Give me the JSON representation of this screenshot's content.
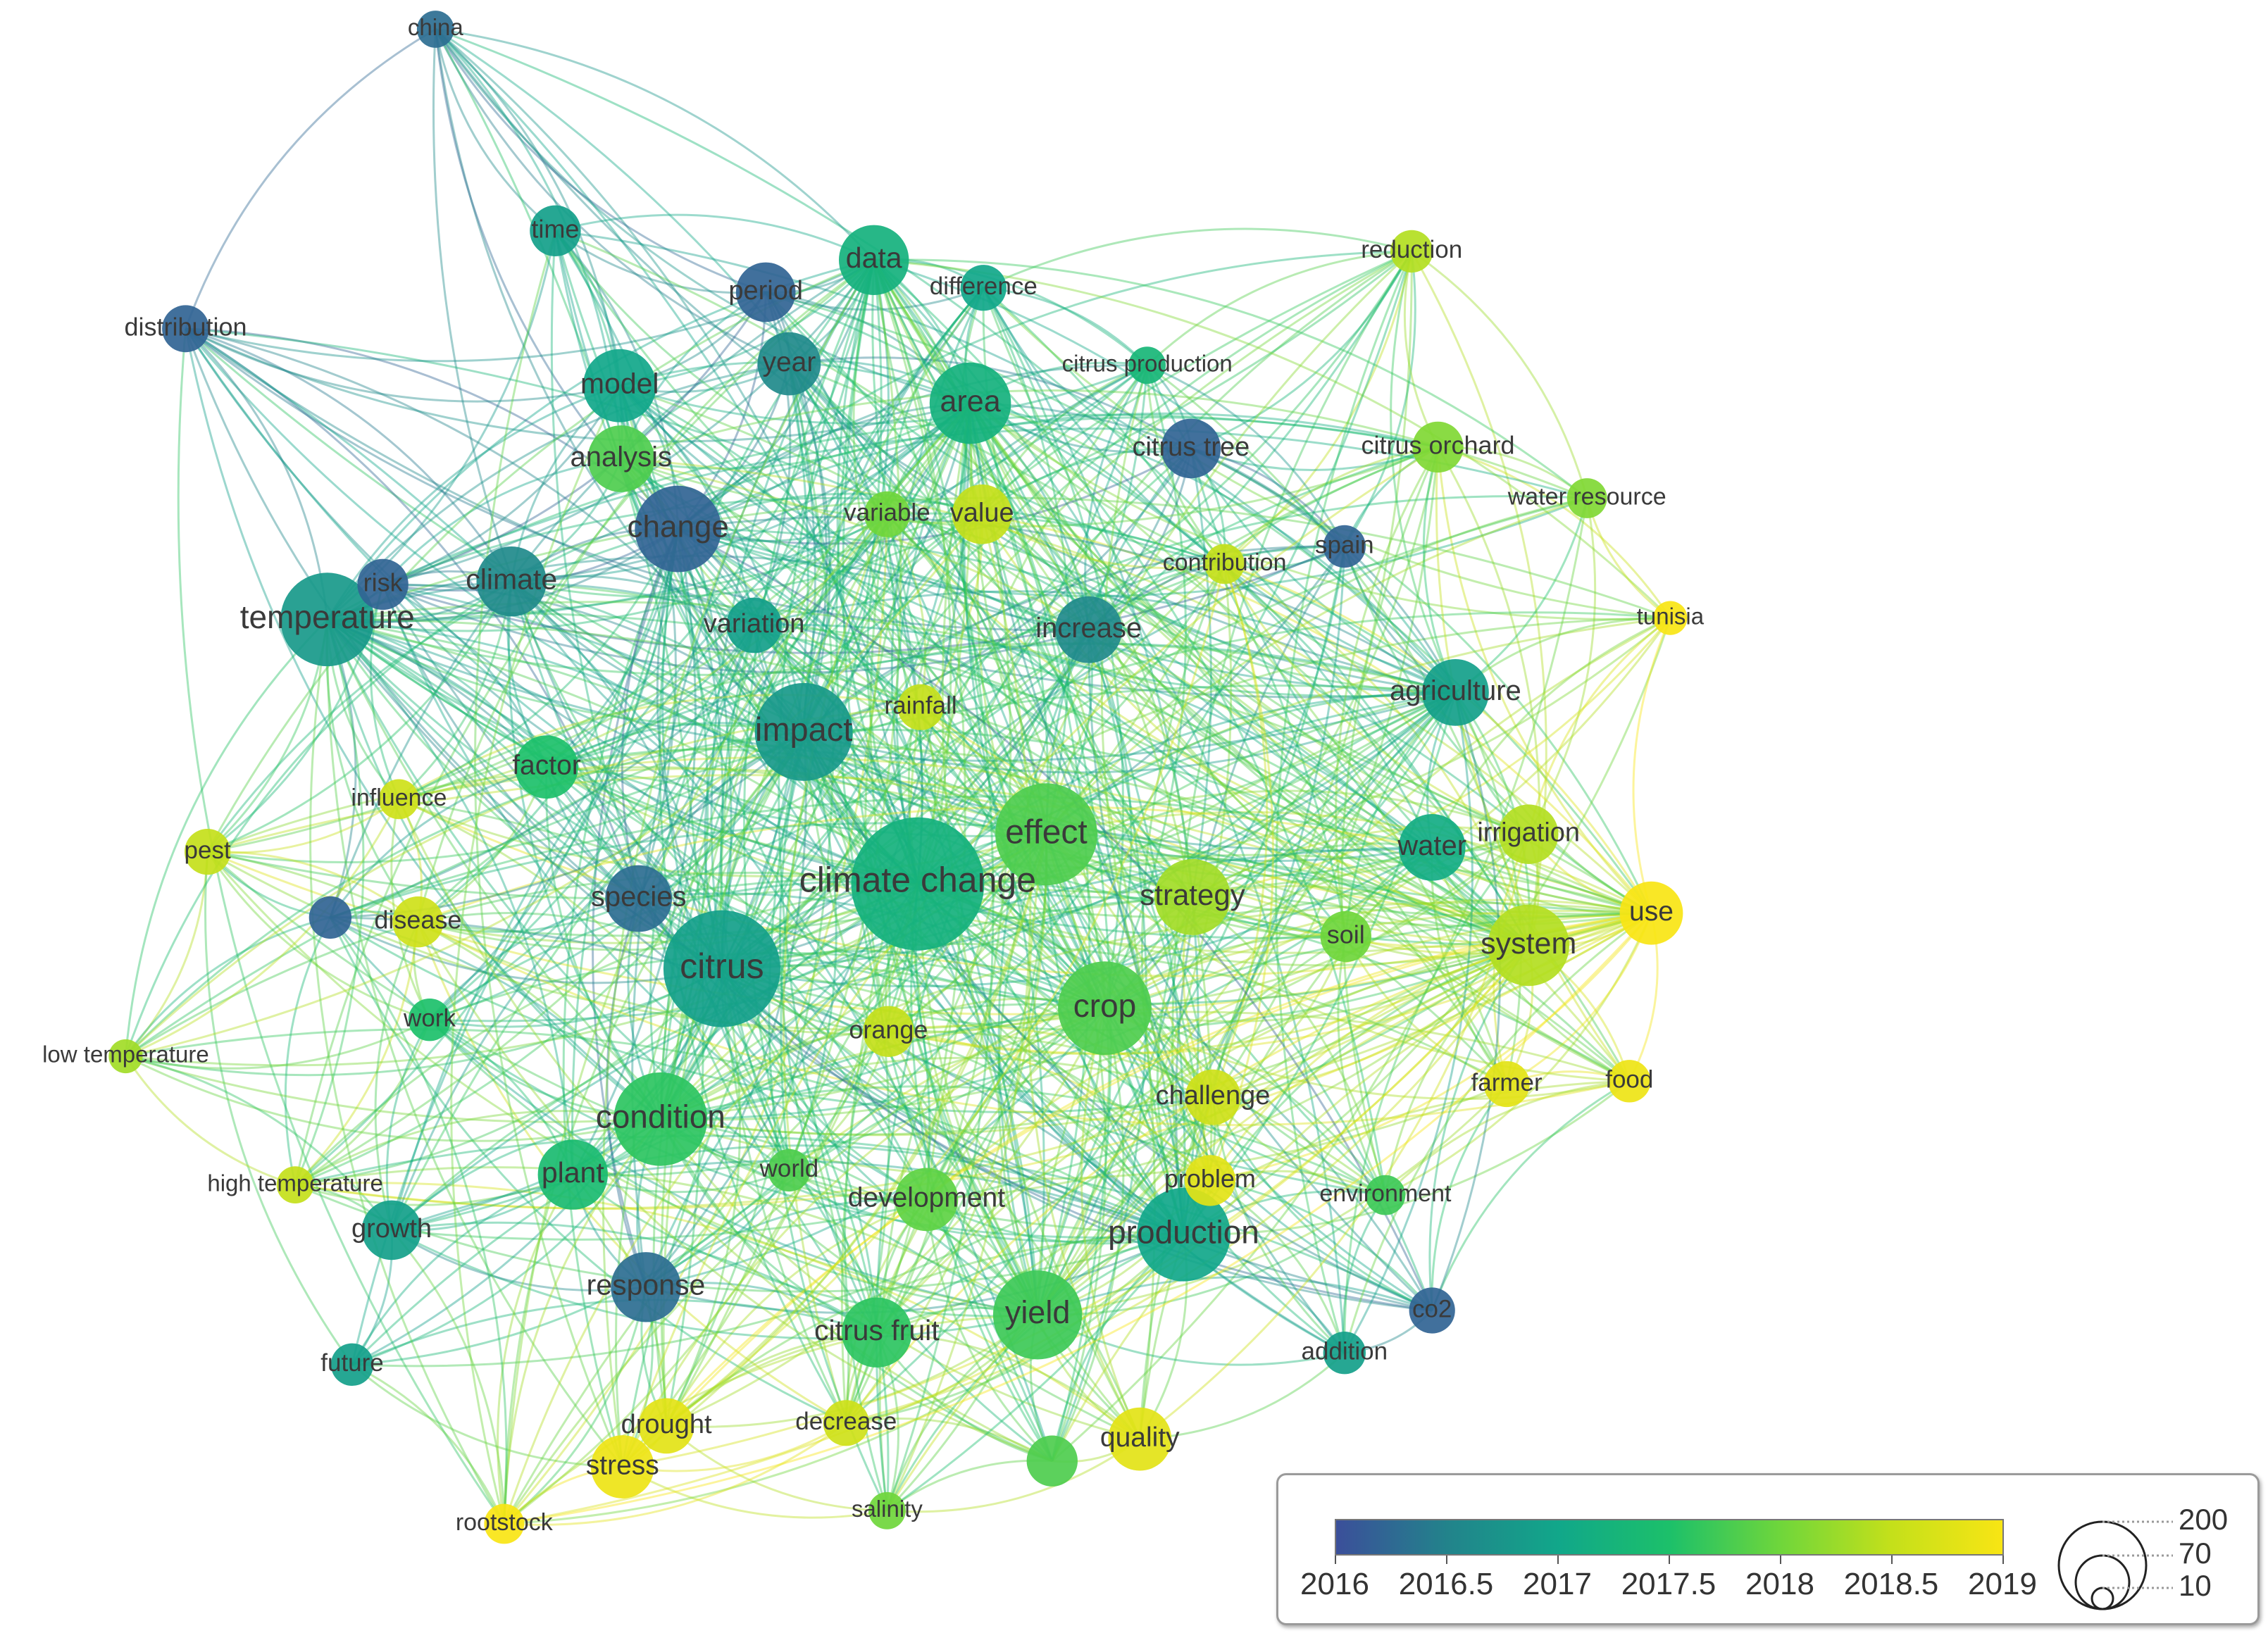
{
  "network": {
    "nodes": [
      {
        "id": "china",
        "label": "china",
        "year": 2016.3,
        "weight": 8
      },
      {
        "id": "time",
        "label": "time",
        "year": 2016.9,
        "weight": 20
      },
      {
        "id": "data",
        "label": "data",
        "year": 2017.2,
        "weight": 45
      },
      {
        "id": "difference",
        "label": "difference",
        "year": 2017.0,
        "weight": 15
      },
      {
        "id": "reduction",
        "label": "reduction",
        "year": 2018.4,
        "weight": 12
      },
      {
        "id": "distribution",
        "label": "distribution",
        "year": 2016.2,
        "weight": 16
      },
      {
        "id": "period",
        "label": "period",
        "year": 2016.2,
        "weight": 30
      },
      {
        "id": "year",
        "label": "year",
        "year": 2016.6,
        "weight": 35
      },
      {
        "id": "citrus_production",
        "label": "citrus production",
        "year": 2017.3,
        "weight": 8
      },
      {
        "id": "model",
        "label": "model",
        "year": 2017.0,
        "weight": 50
      },
      {
        "id": "area",
        "label": "area",
        "year": 2017.2,
        "weight": 65
      },
      {
        "id": "citrus_tree",
        "label": "citrus tree",
        "year": 2016.2,
        "weight": 30
      },
      {
        "id": "citrus_orchard",
        "label": "citrus orchard",
        "year": 2018.1,
        "weight": 20
      },
      {
        "id": "analysis",
        "label": "analysis",
        "year": 2017.8,
        "weight": 40
      },
      {
        "id": "water_resource",
        "label": "water resource",
        "year": 2018.1,
        "weight": 10
      },
      {
        "id": "variable",
        "label": "variable",
        "year": 2018.0,
        "weight": 15
      },
      {
        "id": "value",
        "label": "value",
        "year": 2018.5,
        "weight": 30
      },
      {
        "id": "change",
        "label": "change",
        "year": 2016.2,
        "weight": 75
      },
      {
        "id": "risk",
        "label": "risk",
        "year": 2016.2,
        "weight": 20
      },
      {
        "id": "climate",
        "label": "climate",
        "year": 2016.6,
        "weight": 45
      },
      {
        "id": "contribution",
        "label": "contribution",
        "year": 2018.5,
        "weight": 10
      },
      {
        "id": "spain",
        "label": "spain",
        "year": 2016.2,
        "weight": 12
      },
      {
        "id": "temperature",
        "label": "temperature",
        "year": 2016.8,
        "weight": 90
      },
      {
        "id": "variation",
        "label": "variation",
        "year": 2016.9,
        "weight": 25
      },
      {
        "id": "increase",
        "label": "increase",
        "year": 2016.6,
        "weight": 40
      },
      {
        "id": "tunisia",
        "label": "tunisia",
        "year": 2019.0,
        "weight": 6
      },
      {
        "id": "rainfall",
        "label": "rainfall",
        "year": 2018.5,
        "weight": 15
      },
      {
        "id": "agriculture",
        "label": "agriculture",
        "year": 2016.9,
        "weight": 40
      },
      {
        "id": "impact",
        "label": "impact",
        "year": 2016.8,
        "weight": 100
      },
      {
        "id": "factor",
        "label": "factor",
        "year": 2017.5,
        "weight": 35
      },
      {
        "id": "influence",
        "label": "influence",
        "year": 2018.6,
        "weight": 10
      },
      {
        "id": "effect",
        "label": "effect",
        "year": 2017.8,
        "weight": 110
      },
      {
        "id": "irrigation",
        "label": "irrigation",
        "year": 2018.4,
        "weight": 30
      },
      {
        "id": "pest",
        "label": "pest",
        "year": 2018.5,
        "weight": 15
      },
      {
        "id": "water",
        "label": "water",
        "year": 2017.1,
        "weight": 40
      },
      {
        "id": "climate_change",
        "label": "climate change",
        "year": 2017.2,
        "weight": 200
      },
      {
        "id": "strategy",
        "label": "strategy",
        "year": 2018.3,
        "weight": 55
      },
      {
        "id": "use",
        "label": "use",
        "year": 2019.0,
        "weight": 35
      },
      {
        "id": "species",
        "label": "species",
        "year": 2016.3,
        "weight": 40
      },
      {
        "id": "disease",
        "label": "disease",
        "year": 2018.6,
        "weight": 20
      },
      {
        "id": "purple_node",
        "label": "",
        "year": 2016.2,
        "weight": 12
      },
      {
        "id": "soil",
        "label": "soil",
        "year": 2018.0,
        "weight": 20
      },
      {
        "id": "system",
        "label": "system",
        "year": 2018.4,
        "weight": 65
      },
      {
        "id": "citrus",
        "label": "citrus",
        "year": 2016.9,
        "weight": 150
      },
      {
        "id": "crop",
        "label": "crop",
        "year": 2017.8,
        "weight": 90
      },
      {
        "id": "work",
        "label": "work",
        "year": 2017.5,
        "weight": 12
      },
      {
        "id": "orange",
        "label": "orange",
        "year": 2018.5,
        "weight": 20
      },
      {
        "id": "low_temperature",
        "label": "low temperature",
        "year": 2018.3,
        "weight": 6
      },
      {
        "id": "challenge",
        "label": "challenge",
        "year": 2018.6,
        "weight": 25
      },
      {
        "id": "farmer",
        "label": "farmer",
        "year": 2018.8,
        "weight": 15
      },
      {
        "id": "food",
        "label": "food",
        "year": 2018.9,
        "weight": 12
      },
      {
        "id": "condition",
        "label": "condition",
        "year": 2017.6,
        "weight": 90
      },
      {
        "id": "world",
        "label": "world",
        "year": 2017.8,
        "weight": 12
      },
      {
        "id": "high_temperature",
        "label": "high temperature",
        "year": 2018.5,
        "weight": 8
      },
      {
        "id": "plant",
        "label": "plant",
        "year": 2017.4,
        "weight": 45
      },
      {
        "id": "problem",
        "label": "problem",
        "year": 2018.8,
        "weight": 20
      },
      {
        "id": "development",
        "label": "development",
        "year": 2017.9,
        "weight": 35
      },
      {
        "id": "environment",
        "label": "environment",
        "year": 2017.7,
        "weight": 10
      },
      {
        "id": "growth",
        "label": "growth",
        "year": 2016.9,
        "weight": 30
      },
      {
        "id": "production",
        "label": "production",
        "year": 2017.0,
        "weight": 90
      },
      {
        "id": "response",
        "label": "response",
        "year": 2016.3,
        "weight": 45
      },
      {
        "id": "co2",
        "label": "co2",
        "year": 2016.2,
        "weight": 15
      },
      {
        "id": "citrus_fruit",
        "label": "citrus fruit",
        "year": 2017.6,
        "weight": 45
      },
      {
        "id": "yield",
        "label": "yield",
        "year": 2017.7,
        "weight": 80
      },
      {
        "id": "future",
        "label": "future",
        "year": 2016.9,
        "weight": 12
      },
      {
        "id": "addition",
        "label": "addition",
        "year": 2016.9,
        "weight": 12
      },
      {
        "id": "drought",
        "label": "drought",
        "year": 2018.8,
        "weight": 25
      },
      {
        "id": "decrease",
        "label": "decrease",
        "year": 2018.6,
        "weight": 15
      },
      {
        "id": "quality",
        "label": "quality",
        "year": 2018.8,
        "weight": 35
      },
      {
        "id": "green_node",
        "label": "",
        "year": 2017.8,
        "weight": 20
      },
      {
        "id": "stress",
        "label": "stress",
        "year": 2018.9,
        "weight": 35
      },
      {
        "id": "salinity",
        "label": "salinity",
        "year": 2018.0,
        "weight": 8
      },
      {
        "id": "rootstock",
        "label": "rootstock",
        "year": 2019.0,
        "weight": 10
      }
    ]
  },
  "legend": {
    "color_ticks": [
      "2016",
      "2016.5",
      "2017",
      "2017.5",
      "2018",
      "2018.5",
      "2019"
    ],
    "color_min": 2016,
    "color_max": 2019,
    "gradient": [
      "#3b4f9a",
      "#22838b",
      "#11a78a",
      "#1cc06a",
      "#6fd63b",
      "#c4e01a",
      "#f8e514"
    ],
    "size_values": [
      "200",
      "70",
      "10"
    ]
  }
}
